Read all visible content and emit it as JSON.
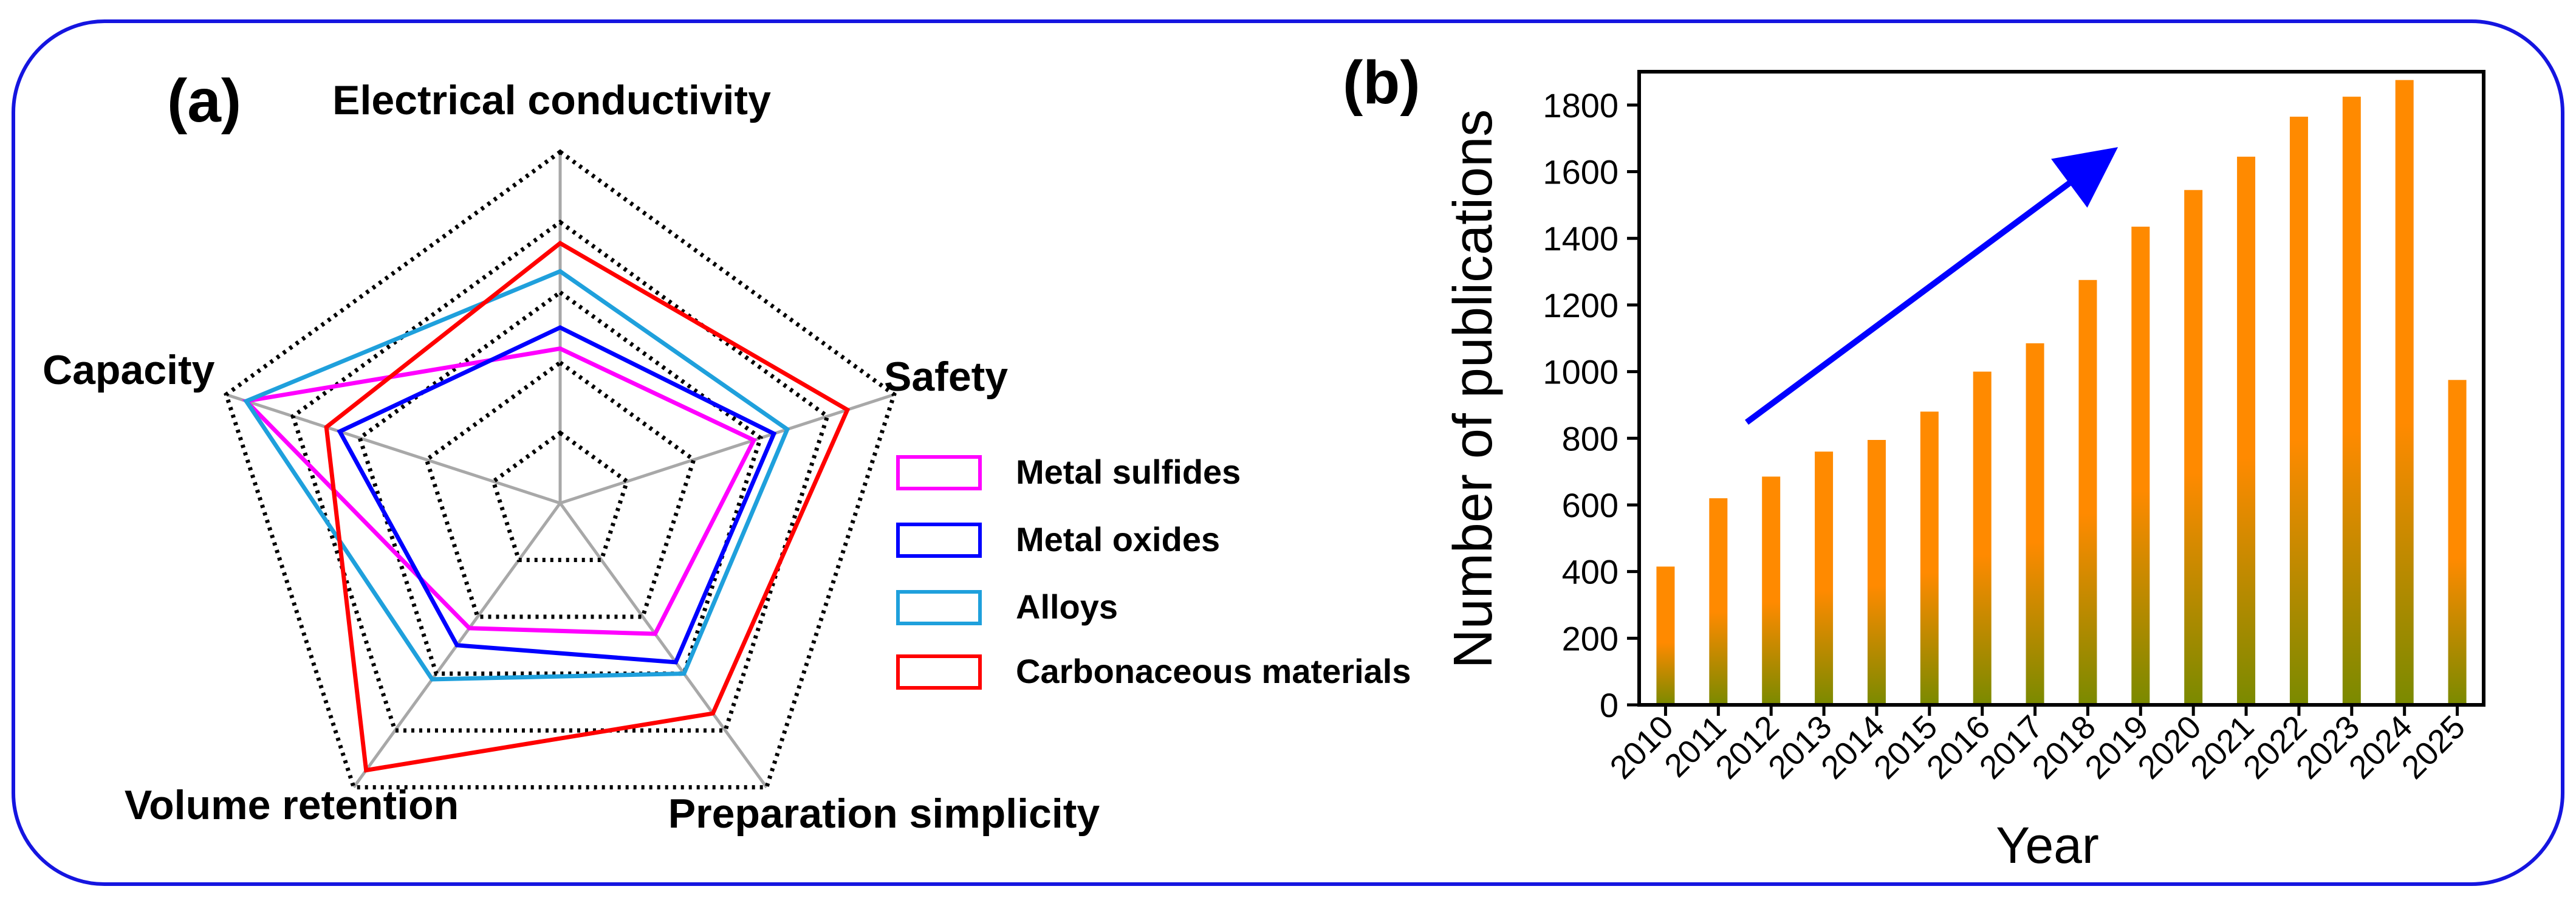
{
  "panel_a": {
    "label": "(a)",
    "chart_data": {
      "type": "radar",
      "axes": [
        "Electrical conductivity",
        "Safety",
        "Preparation simplicity",
        "Volume retention",
        "Capacity"
      ],
      "range": [
        0,
        5
      ],
      "levels": [
        1,
        2,
        3,
        4,
        5
      ],
      "series": [
        {
          "name": "Metal sulfides",
          "color": "#ff00ff",
          "values": [
            2.2,
            2.9,
            2.3,
            2.2,
            4.7
          ]
        },
        {
          "name": "Metal oxides",
          "color": "#0000ff",
          "values": [
            2.5,
            3.2,
            2.8,
            2.5,
            3.3
          ]
        },
        {
          "name": "Alloys",
          "color": "#1fa0dc",
          "values": [
            3.3,
            3.4,
            3.0,
            3.1,
            4.7
          ]
        },
        {
          "name": "Carbonaceous materials",
          "color": "#ff0000",
          "values": [
            3.7,
            4.3,
            3.7,
            4.7,
            3.5
          ]
        }
      ]
    }
  },
  "panel_b": {
    "label": "(b)",
    "chart_data": {
      "type": "bar",
      "categories": [
        "2010",
        "2011",
        "2012",
        "2013",
        "2014",
        "2015",
        "2016",
        "2017",
        "2018",
        "2019",
        "2020",
        "2021",
        "2022",
        "2023",
        "2024",
        "2025"
      ],
      "values": [
        415,
        620,
        685,
        760,
        795,
        880,
        1000,
        1085,
        1275,
        1435,
        1545,
        1645,
        1765,
        1825,
        1875,
        975
      ],
      "xlabel": "Year",
      "ylabel": "Number of publications",
      "ylim": [
        0,
        1900
      ],
      "yticks": [
        0,
        200,
        400,
        600,
        800,
        1000,
        1200,
        1400,
        1600,
        1800
      ],
      "bar_color_top": "#ff8a00",
      "bar_color_bottom": "#7a8a00",
      "arrow_color": "#0000ff"
    }
  }
}
